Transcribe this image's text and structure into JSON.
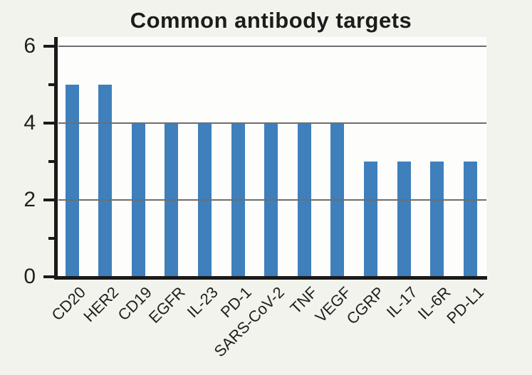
{
  "chart_data": {
    "type": "bar",
    "title": "Common antibody targets",
    "categories": [
      "CD20",
      "HER2",
      "CD19",
      "EGFR",
      "IL-23",
      "PD-1",
      "SARS-CoV-2",
      "TNF",
      "VEGF",
      "CGRP",
      "IL-17",
      "IL-6R",
      "PD-L1"
    ],
    "values": [
      5,
      5,
      4,
      4,
      4,
      4,
      4,
      4,
      4,
      3,
      3,
      3,
      3
    ],
    "xlabel": "",
    "ylabel": "",
    "ylim": [
      0,
      6.25
    ],
    "yticks_major": [
      0,
      2,
      4,
      6
    ],
    "yticks_minor": [
      1,
      3,
      5
    ],
    "grid_values": [
      2,
      4,
      6
    ],
    "grid": "on",
    "grid_above_bars": true,
    "legend_position": "none",
    "bar_color": "#3f7fbb",
    "grid_color": "#6e6e6e",
    "axis_color": "#1a1a1a",
    "text_color": "#1f1f1f",
    "plot_background": "#fdfdfc",
    "page_background": "#f3f3ee"
  }
}
